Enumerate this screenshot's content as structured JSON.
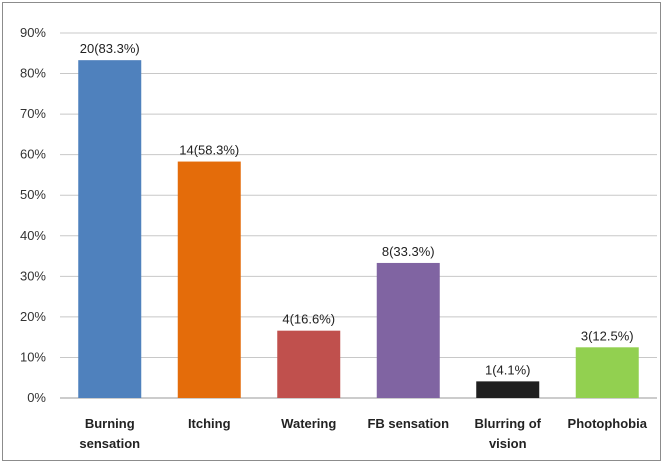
{
  "chart_data": {
    "type": "bar",
    "title": "",
    "xlabel": "",
    "ylabel": "",
    "ylim": [
      0,
      90
    ],
    "yticks": [
      0,
      10,
      20,
      30,
      40,
      50,
      60,
      70,
      80,
      90
    ],
    "ytick_labels": [
      "0%",
      "10%",
      "20%",
      "30%",
      "40%",
      "50%",
      "60%",
      "70%",
      "80%",
      "90%"
    ],
    "grid": true,
    "legend": "none",
    "categories": [
      [
        "Burning",
        "sensation"
      ],
      [
        "Itching"
      ],
      [
        "Watering"
      ],
      [
        "FB sensation"
      ],
      [
        "Blurring of",
        "vision"
      ],
      [
        "Photophobia"
      ]
    ],
    "values": [
      83.3,
      58.3,
      16.6,
      33.3,
      4.1,
      12.5
    ],
    "data_labels": [
      "20(83.3%)",
      "14(58.3%)",
      "4(16.6%)",
      "8(33.3%)",
      "1(4.1%)",
      "3(12.5%)"
    ],
    "colors": [
      "#4f81bd",
      "#e46c0a",
      "#c0504d",
      "#8064a2",
      "#1f1f1f",
      "#92d050"
    ]
  }
}
